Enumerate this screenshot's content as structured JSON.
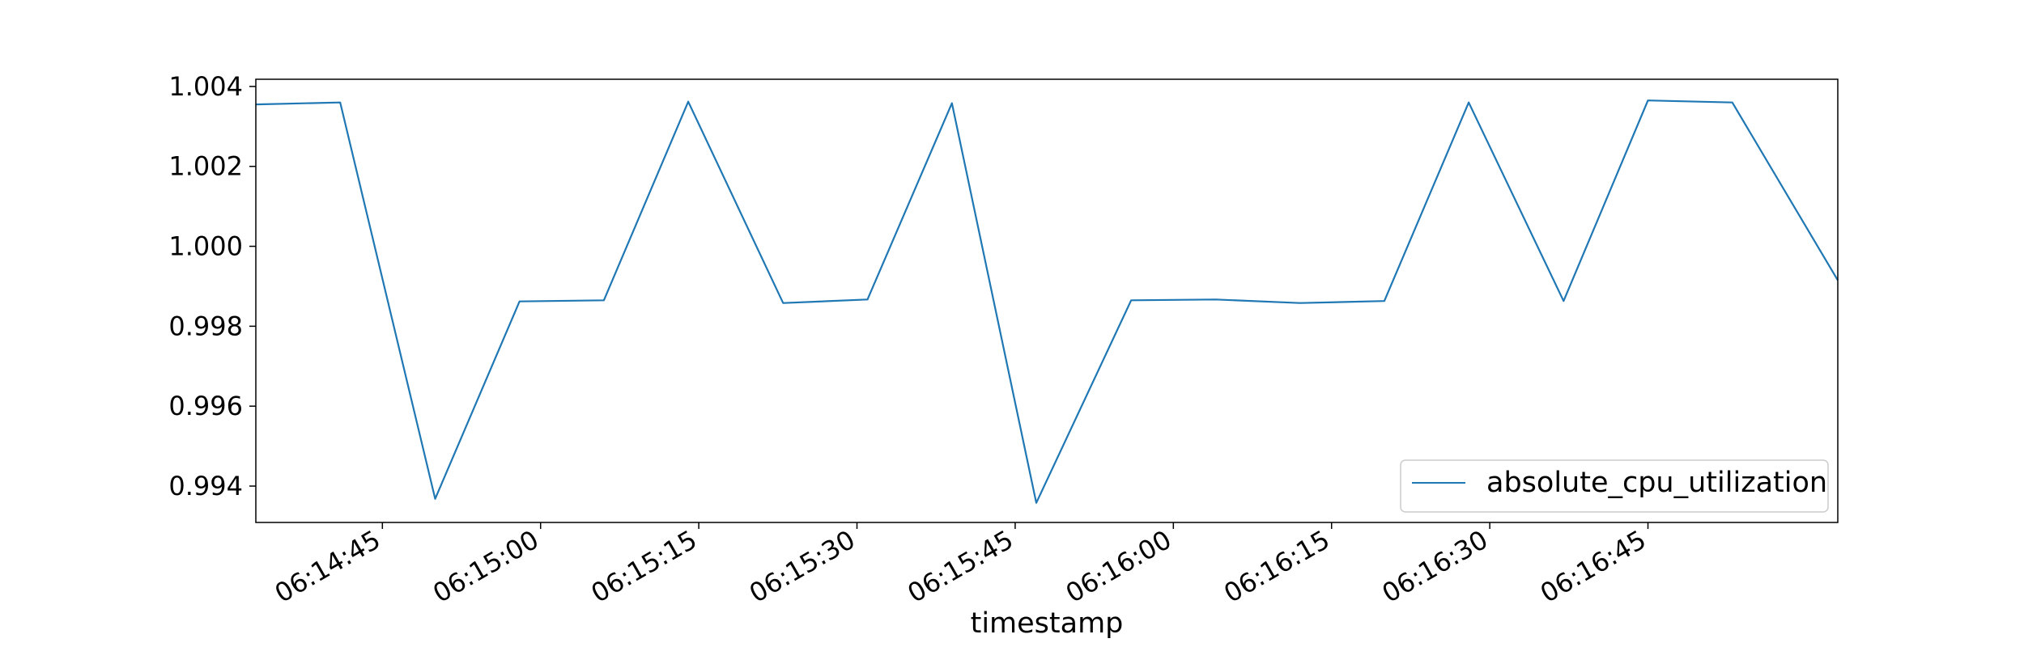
{
  "chart_data": {
    "type": "line",
    "title": "",
    "xlabel": "timestamp",
    "ylabel": "",
    "grid": false,
    "legend_position": "lower-right",
    "x_range": [
      "06:14:33",
      "06:17:03"
    ],
    "ylim": [
      0.99309,
      1.00418
    ],
    "x_tick_labels": [
      "06:14:45",
      "06:15:00",
      "06:15:15",
      "06:15:30",
      "06:15:45",
      "06:16:00",
      "06:16:15",
      "06:16:30",
      "06:16:45"
    ],
    "y_tick_labels": [
      "0.994",
      "0.996",
      "0.998",
      "1.000",
      "1.002",
      "1.004"
    ],
    "series": [
      {
        "name": "absolute_cpu_utilization",
        "color": "#1f77b4",
        "x": [
          "06:14:33",
          "06:14:41",
          "06:14:50",
          "06:14:58",
          "06:15:06",
          "06:15:14",
          "06:15:23",
          "06:15:31",
          "06:15:39",
          "06:15:47",
          "06:15:56",
          "06:16:04",
          "06:16:12",
          "06:16:20",
          "06:16:28",
          "06:16:37",
          "06:16:45",
          "06:16:53",
          "06:17:03"
        ],
        "y": [
          1.00355,
          1.0036,
          0.99368,
          0.99862,
          0.99865,
          1.00362,
          0.99858,
          0.99867,
          1.00358,
          0.99358,
          0.99865,
          0.99867,
          0.99858,
          0.99863,
          1.0036,
          0.99863,
          1.00365,
          1.0036,
          0.99915
        ]
      }
    ]
  }
}
